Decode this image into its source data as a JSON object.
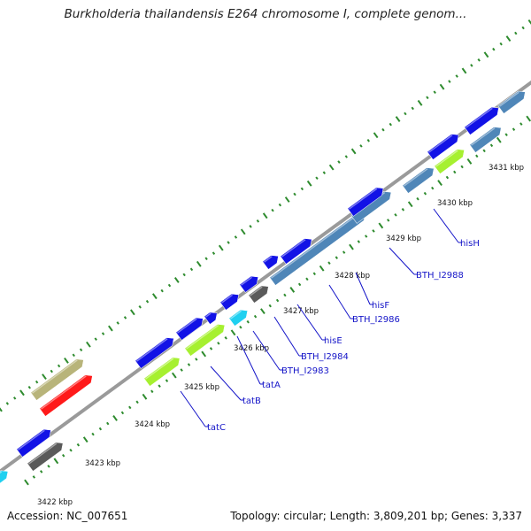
{
  "title": "Burkholderia thailandensis E264 chromosome I, complete genom...",
  "footer": {
    "accession": "Accession: NC_007651",
    "summary": "Topology: circular; Length: 3,809,201 bp; Genes: 3,337"
  },
  "colors": {
    "backbone": "#9a9a9a",
    "tick": "#2e8b2e",
    "label": "#1414c8",
    "gene_blue": "#1212e6",
    "gene_steel": "#4f86b8",
    "gene_gray": "#5a5a5a",
    "gene_lime": "#a6f030",
    "gene_cyan": "#20d0f0",
    "gene_khaki": "#b8b47a",
    "gene_red": "#ff1a1a"
  },
  "kbp_ticks": [
    "3422 kbp",
    "3423 kbp",
    "3424 kbp",
    "3425 kbp",
    "3426 kbp",
    "3427 kbp",
    "3428 kbp",
    "3429 kbp",
    "3430 kbp",
    "3431 kbp"
  ],
  "gene_labels": [
    "tatC",
    "tatB",
    "tatA",
    "BTH_I2983",
    "BTH_I2984",
    "hisE",
    "BTH_I2986",
    "hisF",
    "BTH_I2988",
    "hisH"
  ],
  "genes": [
    {
      "color": "gene_cyan"
    },
    {
      "color": "gene_blue"
    },
    {
      "color": "gene_gray"
    },
    {
      "color": "gene_blue"
    },
    {
      "color": "gene_khaki"
    },
    {
      "color": "gene_red"
    },
    {
      "color": "gene_blue"
    },
    {
      "color": "gene_lime"
    },
    {
      "color": "gene_blue"
    },
    {
      "color": "gene_lime"
    },
    {
      "color": "gene_blue"
    },
    {
      "color": "gene_cyan"
    },
    {
      "color": "gene_blue"
    },
    {
      "color": "gene_gray"
    },
    {
      "color": "gene_blue"
    },
    {
      "color": "gene_blue"
    },
    {
      "color": "gene_steel"
    },
    {
      "color": "gene_blue"
    },
    {
      "color": "gene_steel"
    },
    {
      "color": "gene_blue"
    },
    {
      "color": "gene_steel"
    },
    {
      "color": "gene_lime"
    },
    {
      "color": "gene_blue"
    },
    {
      "color": "gene_steel"
    },
    {
      "color": "gene_blue"
    },
    {
      "color": "gene_steel"
    }
  ]
}
